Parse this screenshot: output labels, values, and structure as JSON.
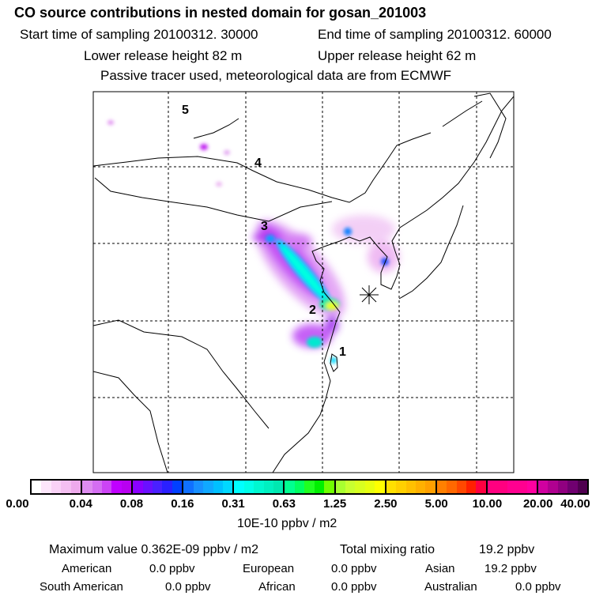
{
  "header": {
    "title": "CO  source contributions in nested domain for gosan_201003",
    "start_label": "Start time of sampling 20100312. 30000",
    "end_label": "End time of sampling 20100312. 60000",
    "lower_label": "Lower release height   82 m",
    "upper_label": "Upper release height   62 m",
    "tracer_label": "Passive tracer used, meteorological data are from ECMWF"
  },
  "map": {
    "markers": [
      "1",
      "2",
      "3",
      "4",
      "5"
    ],
    "receptor_icon": "star-asterisk-icon"
  },
  "colorbar": {
    "ticks": [
      "0.00",
      "0.04",
      "0.08",
      "0.16",
      "0.31",
      "0.63",
      "1.25",
      "2.50",
      "5.00",
      "10.00",
      "20.00",
      "40.00"
    ],
    "unit": "10E-10 ppbv / m2",
    "segments": [
      [
        "#ffffff",
        "#fde6fb",
        "#f9d2f6",
        "#f4bff1",
        "#eeaaec"
      ],
      [
        "#de8cf0",
        "#d46ef2",
        "#cc44f5",
        "#c000ff",
        "#b800f0"
      ],
      [
        "#8a00ff",
        "#6a10ff",
        "#4a20ff",
        "#2a20ff",
        "#0040ff"
      ],
      [
        "#1070ff",
        "#1890ff",
        "#10a8ff",
        "#00c0ff",
        "#00d8ff"
      ],
      [
        "#00ffff",
        "#00ffe8",
        "#00f8d0",
        "#00f0c0",
        "#00e8b0"
      ],
      [
        "#00ff90",
        "#00ff60",
        "#20ff20",
        "#00f000",
        "#70ff00"
      ],
      [
        "#a8ff30",
        "#c8ff30",
        "#d8ff20",
        "#e8ff10",
        "#ffff00"
      ],
      [
        "#ffe000",
        "#ffd000",
        "#ffc000",
        "#ffb000",
        "#ffa000"
      ],
      [
        "#ff8000",
        "#ff6800",
        "#ff4800",
        "#ff2000",
        "#ff0040"
      ],
      [
        "#ff0080",
        "#ff0080",
        "#ff0090",
        "#ff0090",
        "#ff00a0"
      ],
      [
        "#d000a0",
        "#b00090",
        "#900080",
        "#700070",
        "#500050"
      ]
    ]
  },
  "summary": {
    "max_label": "Maximum value  0.362E-09 ppbv / m2",
    "total_label": "Total mixing ratio",
    "total_value": "19.2 ppbv",
    "regions": [
      {
        "name": "American",
        "value": "0.0 ppbv"
      },
      {
        "name": "European",
        "value": "0.0 ppbv"
      },
      {
        "name": "Asian",
        "value": "19.2 ppbv"
      },
      {
        "name": "South American",
        "value": "0.0 ppbv"
      },
      {
        "name": "African",
        "value": "0.0 ppbv"
      },
      {
        "name": "Australian",
        "value": "0.0 ppbv"
      }
    ]
  }
}
